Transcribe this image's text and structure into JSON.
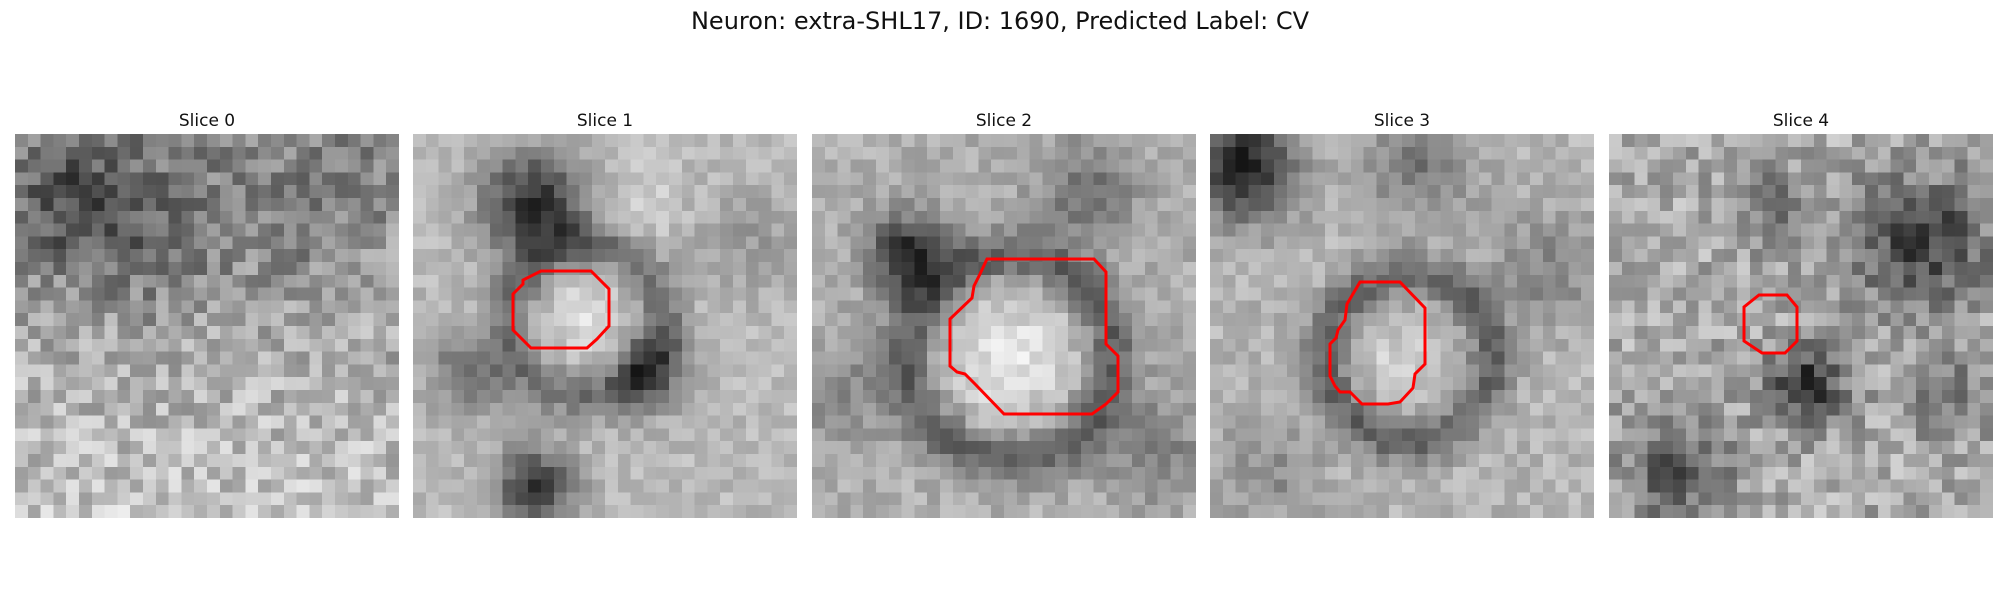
{
  "figure": {
    "title": "Neuron: extra-SHL17, ID: 1690, Predicted Label: CV"
  },
  "contour_color": "#ff0000",
  "colormap": "gray",
  "grid_size": 30,
  "panels": [
    {
      "title": "Slice 0",
      "has_contour": false
    },
    {
      "title": "Slice 1",
      "has_contour": true
    },
    {
      "title": "Slice 2",
      "has_contour": true
    },
    {
      "title": "Slice 3",
      "has_contour": true
    },
    {
      "title": "Slice 4",
      "has_contour": true
    }
  ]
}
